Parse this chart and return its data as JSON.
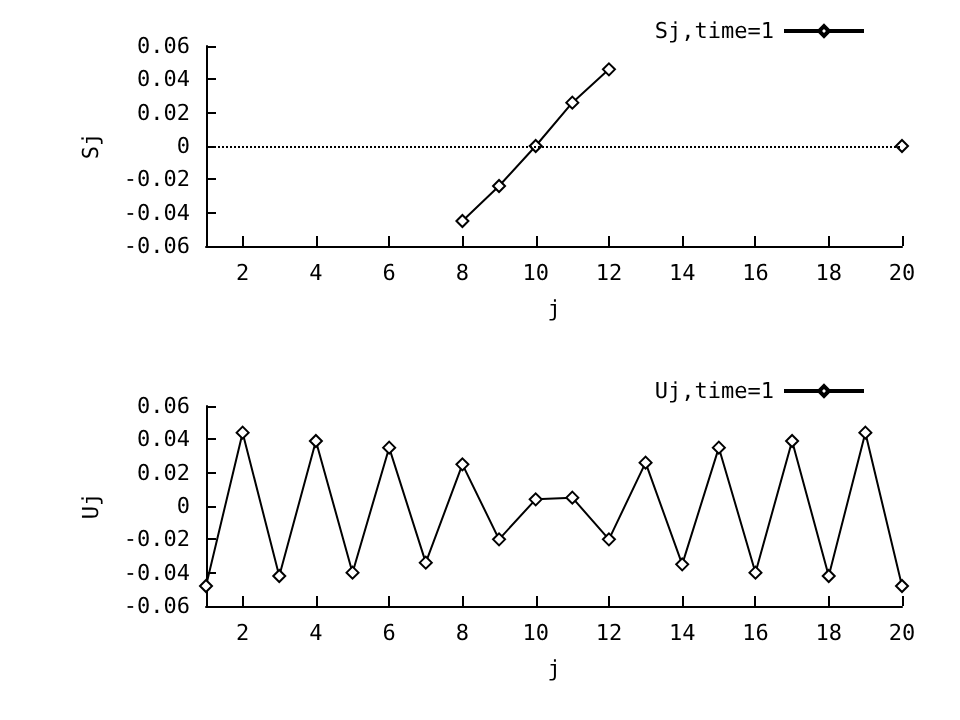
{
  "chart_data": [
    {
      "type": "line",
      "xlabel": "j",
      "ylabel": "Sj",
      "series": [
        {
          "name": "Sj,time=1",
          "color": "#000000",
          "x": [
            8,
            9,
            10,
            11,
            12,
            14,
            20
          ],
          "values": [
            -0.045,
            -0.024,
            0,
            0.026,
            0.046,
            null,
            0
          ]
        }
      ],
      "xlim": [
        1,
        20
      ],
      "xticks": [
        2,
        4,
        6,
        8,
        10,
        12,
        14,
        16,
        18,
        20
      ],
      "ylim": [
        -0.06,
        0.06
      ],
      "yticks": [
        -0.06,
        -0.04,
        -0.02,
        0,
        0.02,
        0.04,
        0.06
      ],
      "ref_lines": [
        {
          "axis": "y",
          "value": 0,
          "color": "#000000",
          "line_style": "dotted"
        }
      ],
      "grid": false,
      "legend": "top right",
      "marker": "diamond",
      "line_style": "solid"
    },
    {
      "type": "line",
      "xlabel": "j",
      "ylabel": "Uj",
      "x": [
        1,
        2,
        3,
        4,
        5,
        6,
        7,
        8,
        9,
        10,
        11,
        12,
        13,
        14,
        15,
        16,
        17,
        18,
        19,
        20
      ],
      "series": [
        {
          "name": "Uj,time=1",
          "color": "#000000",
          "values": [
            -0.048,
            0.044,
            -0.042,
            0.039,
            -0.04,
            0.035,
            -0.034,
            0.025,
            -0.02,
            0.004,
            0.005,
            -0.02,
            0.026,
            -0.035,
            0.035,
            -0.04,
            0.039,
            -0.042,
            0.044,
            -0.048
          ]
        }
      ],
      "xlim": [
        1,
        20
      ],
      "xticks": [
        2,
        4,
        6,
        8,
        10,
        12,
        14,
        16,
        18,
        20
      ],
      "ylim": [
        -0.06,
        0.06
      ],
      "yticks": [
        -0.06,
        -0.04,
        -0.02,
        0,
        0.02,
        0.04,
        0.06
      ],
      "grid": false,
      "legend": "top right",
      "marker": "diamond",
      "line_style": "solid"
    }
  ]
}
